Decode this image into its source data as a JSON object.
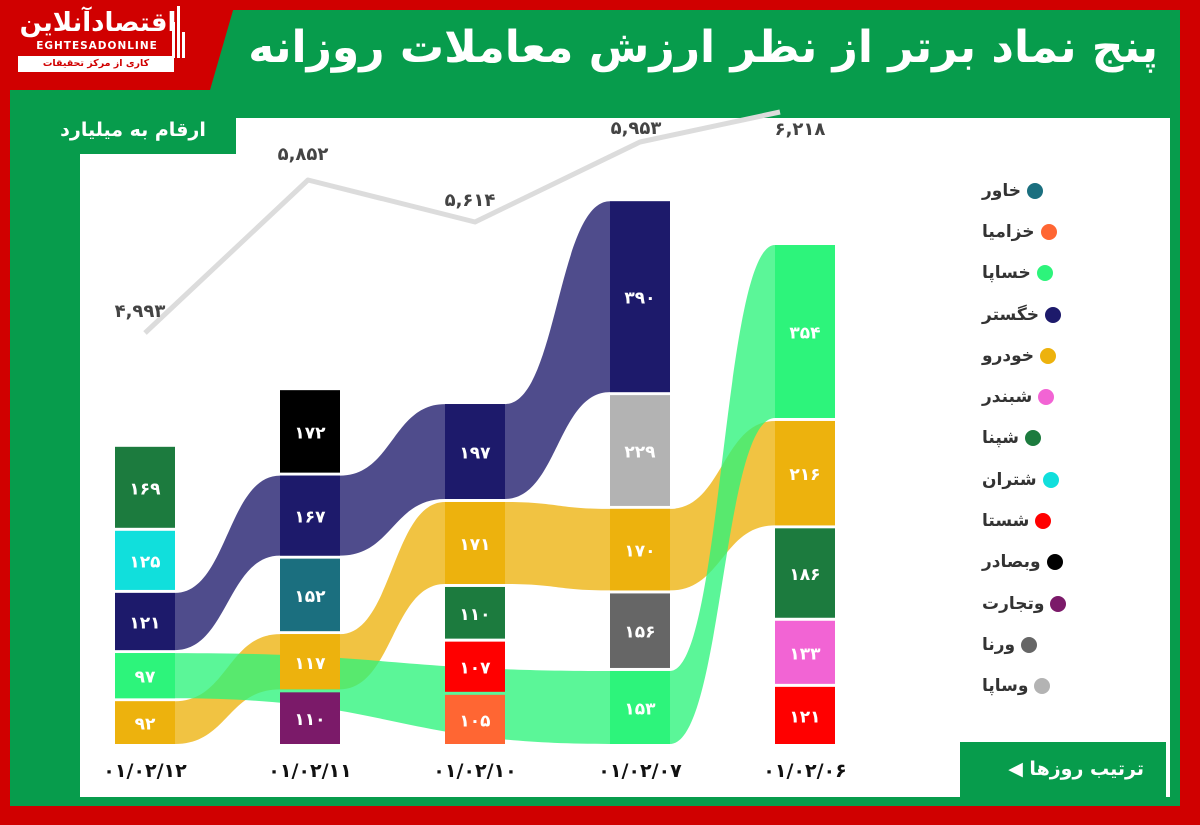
{
  "header": {
    "title": "پنج نماد برتر از نظر ارزش معاملات روزانه",
    "logo": {
      "name": "اقتصادآنلاین",
      "latin": "EGHTESADONLINE",
      "tagline": "کاری از مرکز تحقیقات اقتصادآنلاین"
    }
  },
  "unit_label": "ارقام به میلیارد تومان",
  "order_label": "ترتیب روزها ◀",
  "colors": {
    "frame_red": "#d00000",
    "frame_green": "#079c4c",
    "line": "#dcdcdc"
  },
  "legend": [
    {
      "label": "خاور",
      "color": "#1b6f7f"
    },
    {
      "label": "خزامیا",
      "color": "#ff6633"
    },
    {
      "label": "خساپا",
      "color": "#2df47b"
    },
    {
      "label": "خگستر",
      "color": "#1d1a6b"
    },
    {
      "label": "خودرو",
      "color": "#edb20d"
    },
    {
      "label": "شبندر",
      "color": "#f264d4"
    },
    {
      "label": "شپنا",
      "color": "#1c7b3e"
    },
    {
      "label": "شتران",
      "color": "#11dfdc"
    },
    {
      "label": "شستا",
      "color": "#ff0000"
    },
    {
      "label": "وبصادر",
      "color": "#000000"
    },
    {
      "label": "وتجارت",
      "color": "#7b1a69"
    },
    {
      "label": "ورنا",
      "color": "#666666"
    },
    {
      "label": "وساپا",
      "color": "#b3b3b3"
    }
  ],
  "chart_data": {
    "type": "bar",
    "subtype": "stacked-ribbon (top 5 symbols per day) with total-value line",
    "title": "پنج نماد برتر از نظر ارزش معاملات روزانه",
    "unit": "ارقام به میلیارد تومان",
    "x_order_note": "ترتیب روزها (right-to-left, oldest on right)",
    "categories": [
      "۰۱/۰۲/۱۲",
      "۰۱/۰۲/۱۱",
      "۰۱/۰۲/۱۰",
      "۰۱/۰۲/۰۷",
      "۰۱/۰۲/۰۶"
    ],
    "stacks": [
      {
        "date": "۰۱/۰۲/۱۲",
        "items": [
          {
            "symbol": "شپنا",
            "value": 169,
            "label": "۱۶۹"
          },
          {
            "symbol": "شتران",
            "value": 125,
            "label": "۱۲۵"
          },
          {
            "symbol": "خگستر",
            "value": 121,
            "label": "۱۲۱"
          },
          {
            "symbol": "خساپا",
            "value": 97,
            "label": "۹۷"
          },
          {
            "symbol": "خودرو",
            "value": 92,
            "label": "۹۲"
          }
        ]
      },
      {
        "date": "۰۱/۰۲/۱۱",
        "items": [
          {
            "symbol": "وبصادر",
            "value": 172,
            "label": "۱۷۲"
          },
          {
            "symbol": "خگستر",
            "value": 167,
            "label": "۱۶۷"
          },
          {
            "symbol": "خاور",
            "value": 152,
            "label": "۱۵۲"
          },
          {
            "symbol": "خودرو",
            "value": 117,
            "label": "۱۱۷"
          },
          {
            "symbol": "وتجارت",
            "value": 110,
            "label": "۱۱۰"
          }
        ]
      },
      {
        "date": "۰۱/۰۲/۱۰",
        "items": [
          {
            "symbol": "خگستر",
            "value": 197,
            "label": "۱۹۷"
          },
          {
            "symbol": "خودرو",
            "value": 171,
            "label": "۱۷۱"
          },
          {
            "symbol": "شپنا",
            "value": 110,
            "label": "۱۱۰"
          },
          {
            "symbol": "شستا",
            "value": 107,
            "label": "۱۰۷"
          },
          {
            "symbol": "خزامیا",
            "value": 105,
            "label": "۱۰۵"
          }
        ]
      },
      {
        "date": "۰۱/۰۲/۰۷",
        "items": [
          {
            "symbol": "خگستر",
            "value": 390,
            "label": "۳۹۰"
          },
          {
            "symbol": "وساپا",
            "value": 229,
            "label": "۲۲۹"
          },
          {
            "symbol": "خودرو",
            "value": 170,
            "label": "۱۷۰"
          },
          {
            "symbol": "ورنا",
            "value": 156,
            "label": "۱۵۶"
          },
          {
            "symbol": "خساپا",
            "value": 153,
            "label": "۱۵۳"
          }
        ]
      },
      {
        "date": "۰۱/۰۲/۰۶",
        "items": [
          {
            "symbol": "خساپا",
            "value": 354,
            "label": "۳۵۴"
          },
          {
            "symbol": "خودرو",
            "value": 216,
            "label": "۲۱۶"
          },
          {
            "symbol": "شپنا",
            "value": 186,
            "label": "۱۸۶"
          },
          {
            "symbol": "شبندر",
            "value": 133,
            "label": "۱۳۳"
          },
          {
            "symbol": "شستا",
            "value": 121,
            "label": "۱۲۱"
          }
        ]
      }
    ],
    "line_series": {
      "name": "total market trade value",
      "values": [
        4993,
        5852,
        5614,
        5953,
        6218
      ],
      "labels": [
        "۴,۹۹۳",
        "۵,۸۵۲",
        "۵,۶۱۴",
        "۵,۹۵۳",
        "۶,۲۱۸"
      ]
    },
    "ribbons": [
      "خگستر",
      "خودرو",
      "خساپا"
    ],
    "legend_position": "right",
    "grid": false
  }
}
